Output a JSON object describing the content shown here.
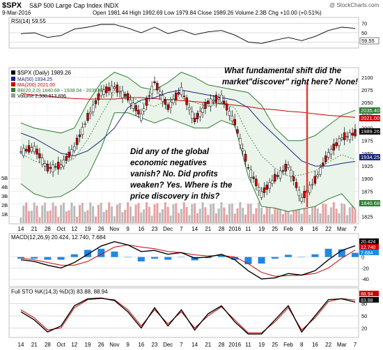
{
  "header": {
    "symbol": "$SPX",
    "name": "S&P 500 Large Cap Index INDX",
    "brand": "@ StockCharts.com",
    "date": "9-Mar-2016",
    "ohlc": "Open 1981.44  High 1992.69  Low 1979.84  Close 1989.26  Volume 2.3B  Chg +10.00 (+0.51%)",
    "up_arrow": "▲"
  },
  "rsi_panel": {
    "label": "RSI(14) 59.55",
    "axis": [
      "70",
      "50",
      "30"
    ],
    "current_label": "59.55"
  },
  "price_panel": {
    "legend": {
      "title": "$SPX (Daily) 1989.26",
      "ma50": "MA(50) 1934.25",
      "ma200": "MA(200) 2021.00",
      "bb": "BB(20,2.0) 1840.68 - 1938.04 - 2035.40",
      "volume": "Volume 2,330,813,696"
    },
    "axis_right": [
      "2100",
      "2075",
      "2050",
      "2025",
      "2000",
      "1975",
      "1950",
      "1925",
      "1900",
      "1875",
      "1850",
      "1825"
    ],
    "right_badges": [
      "2035.40",
      "2021.00",
      "1989.26",
      "1934.25",
      "1840.68"
    ],
    "vol_axis": [
      "5B",
      "4B",
      "3B",
      "2B",
      "1B"
    ],
    "annotation_top_line1": "What fundamental shift did the",
    "annotation_top_line2": "market\"discover\" right here? None!",
    "annotation_mid_lines": [
      "Did any of the global",
      "economic negatives",
      "vanish? No. Did profits",
      "weaken? Yes. Where is the",
      "price discovery in this?"
    ]
  },
  "macd_panel": {
    "label": "MACD(12,26,9) 20.424, 12.740, 7.684",
    "axis": [
      "0",
      "-20",
      "-40"
    ],
    "badges": [
      "20.424",
      "12.740",
      "7.684"
    ]
  },
  "sto_panel": {
    "label": "Full STO %K(14,3) %D(3) 83.88, 88.94",
    "axis": [
      "80",
      "50",
      "20"
    ],
    "badges": [
      "88.94",
      "83.88"
    ]
  },
  "x_axis_labels": [
    "14",
    "21",
    "28",
    "Oct",
    "12",
    "19",
    "26",
    "Nov",
    "9",
    "16",
    "23",
    "Dec",
    "7",
    "14",
    "21",
    "28",
    "2016",
    "11",
    "19",
    "25",
    "Feb",
    "8",
    "16",
    "22",
    "Mar",
    "7"
  ],
  "colors": {
    "up_candle": "#ffffff",
    "down_candle": "#cc0000",
    "ma50": "#1a237e",
    "ma200": "#cc0000",
    "bb_band": "#2e7d32",
    "macd_hist": "#1e88e5",
    "annotation_text": "#000000",
    "annotation_line": "#e53935"
  },
  "chart_data": [
    {
      "type": "candlestick",
      "title": "$SPX (Daily) 1989.26",
      "ylim": [
        1815,
        2115
      ],
      "x": [
        "14",
        "21",
        "28",
        "Oct",
        "12",
        "19",
        "26",
        "Nov",
        "9",
        "16",
        "23",
        "Dec",
        "7",
        "14",
        "21",
        "28",
        "2016",
        "11",
        "19",
        "25",
        "Feb",
        "8",
        "16",
        "22",
        "Mar",
        "7"
      ],
      "series": [
        {
          "name": "MA(50)",
          "values": [
            1990,
            1980,
            1965,
            1950,
            1945,
            1955,
            1975,
            2000,
            2040,
            2055,
            2060,
            2070,
            2075,
            2070,
            2065,
            2060,
            2055,
            2040,
            2010,
            1985,
            1960,
            1935,
            1925,
            1925,
            1930,
            1934
          ]
        },
        {
          "name": "MA(200)",
          "values": [
            2068,
            2065,
            2063,
            2060,
            2058,
            2057,
            2057,
            2057,
            2060,
            2060,
            2058,
            2056,
            2054,
            2052,
            2050,
            2048,
            2045,
            2042,
            2038,
            2036,
            2033,
            2031,
            2028,
            2025,
            2023,
            2021
          ]
        },
        {
          "name": "BB upper",
          "values": [
            2010,
            2000,
            1995,
            1990,
            2000,
            2050,
            2090,
            2110,
            2100,
            2080,
            2075,
            2090,
            2110,
            2100,
            2085,
            2080,
            2075,
            2070,
            2045,
            2000,
            1975,
            1975,
            1985,
            2005,
            2025,
            2035
          ]
        },
        {
          "name": "BB lower",
          "values": [
            1890,
            1870,
            1862,
            1865,
            1880,
            1905,
            1960,
            2030,
            2030,
            2020,
            2010,
            2020,
            2010,
            2000,
            2000,
            2015,
            2005,
            1905,
            1845,
            1842,
            1835,
            1840,
            1845,
            1860,
            1870,
            1840
          ]
        },
        {
          "name": "Close",
          "values": [
            1953,
            1960,
            1920,
            1925,
            1960,
            2020,
            2070,
            2080,
            2060,
            2023,
            2090,
            2040,
            2075,
            2015,
            2050,
            2060,
            2010,
            1922,
            1870,
            1900,
            1925,
            1860,
            1896,
            1948,
            1980,
            1989
          ]
        }
      ]
    },
    {
      "type": "line",
      "title": "RSI(14) 59.55",
      "ylim": [
        20,
        80
      ],
      "x": [
        "14",
        "21",
        "28",
        "Oct",
        "12",
        "19",
        "26",
        "Nov",
        "9",
        "16",
        "23",
        "Dec",
        "7",
        "14",
        "21",
        "28",
        "2016",
        "11",
        "19",
        "25",
        "Feb",
        "8",
        "16",
        "22",
        "Mar",
        "7"
      ],
      "series": [
        {
          "name": "RSI(14)",
          "values": [
            48,
            50,
            40,
            44,
            58,
            62,
            68,
            68,
            60,
            50,
            62,
            48,
            56,
            46,
            52,
            55,
            45,
            30,
            27,
            34,
            40,
            33,
            42,
            55,
            62,
            59.55
          ]
        }
      ]
    },
    {
      "type": "line",
      "title": "MACD(12,26,9) 20.424, 12.740, 7.684",
      "ylim": [
        -50,
        30
      ],
      "x": [
        "14",
        "21",
        "28",
        "Oct",
        "12",
        "19",
        "26",
        "Nov",
        "9",
        "16",
        "23",
        "Dec",
        "7",
        "14",
        "21",
        "28",
        "2016",
        "11",
        "19",
        "25",
        "Feb",
        "8",
        "16",
        "22",
        "Mar",
        "7"
      ],
      "series": [
        {
          "name": "MACD",
          "values": [
            -5,
            -8,
            -15,
            -20,
            -10,
            5,
            20,
            28,
            22,
            10,
            12,
            5,
            8,
            -2,
            0,
            5,
            -5,
            -25,
            -40,
            -38,
            -30,
            -33,
            -25,
            -5,
            12,
            20.424
          ]
        },
        {
          "name": "Signal",
          "values": [
            -2,
            -5,
            -10,
            -15,
            -15,
            -8,
            5,
            18,
            22,
            18,
            15,
            10,
            8,
            4,
            2,
            3,
            0,
            -12,
            -28,
            -35,
            -34,
            -33,
            -30,
            -20,
            -2,
            12.74
          ]
        }
      ]
    },
    {
      "type": "line",
      "title": "Full STO %K(14,3) %D(3) 83.88, 88.94",
      "ylim": [
        0,
        100
      ],
      "x": [
        "14",
        "21",
        "28",
        "Oct",
        "12",
        "19",
        "26",
        "Nov",
        "9",
        "16",
        "23",
        "Dec",
        "7",
        "14",
        "21",
        "28",
        "2016",
        "11",
        "19",
        "25",
        "Feb",
        "8",
        "16",
        "22",
        "Mar",
        "7"
      ],
      "series": [
        {
          "name": "%K",
          "values": [
            60,
            40,
            10,
            25,
            75,
            92,
            94,
            88,
            60,
            20,
            70,
            25,
            65,
            15,
            55,
            75,
            35,
            5,
            5,
            40,
            75,
            10,
            50,
            90,
            92,
            83.88
          ]
        },
        {
          "name": "%D",
          "values": [
            65,
            45,
            15,
            20,
            70,
            90,
            93,
            90,
            65,
            25,
            65,
            30,
            60,
            20,
            50,
            72,
            40,
            8,
            8,
            35,
            70,
            15,
            45,
            85,
            93,
            88.94
          ]
        }
      ]
    }
  ]
}
